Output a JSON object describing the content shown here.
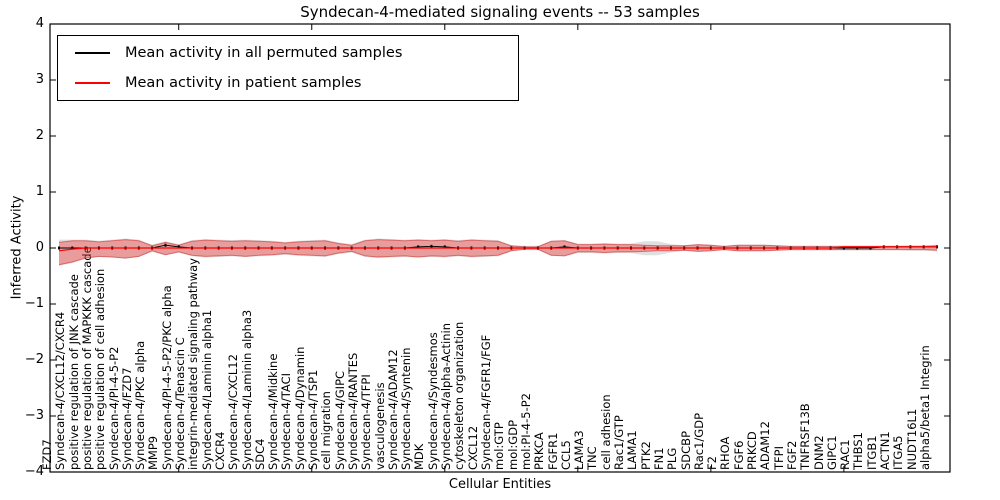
{
  "figure": {
    "background": "#ffffff"
  },
  "chart_data": {
    "type": "line",
    "title": "Syndecan-4-mediated signaling events -- 53 samples",
    "xlabel": "Cellular Entities",
    "ylabel": "Inferred Activity",
    "ylim": [
      -4,
      4
    ],
    "ytick_labels": [
      "4",
      "3",
      "2",
      "1",
      "0",
      "−1",
      "−2",
      "−3",
      "−4"
    ],
    "ytick_values": [
      4,
      3,
      2,
      1,
      0,
      -1,
      -2,
      -3,
      -4
    ],
    "grid": false,
    "legend": {
      "position": "upper left",
      "entries": [
        {
          "label": "Mean activity in all permuted samples",
          "color": "#000000"
        },
        {
          "label": "Mean activity in patient samples",
          "color": "#ff0000"
        }
      ]
    },
    "categories": [
      "FZD7",
      "Syndecan-4/CXCL12/CXCR4",
      "positive regulation of JNK cascade",
      "positive regulation of MAPKKK cascade",
      "positive regulation of cell adhesion",
      "Syndecan-4/PI-4-5-P2",
      "Syndecan-4/FZD7",
      "Syndecan-4/PKC alpha",
      "MMP9",
      "Syndecan-4/PI-4-5-P2/PKC alpha",
      "Syndecan-4/Tenascin C",
      "integrin-mediated signaling pathway",
      "Syndecan-4/Laminin alpha1",
      "CXCR4",
      "Syndecan-4/CXCL12",
      "Syndecan-4/Laminin alpha3",
      "SDC4",
      "Syndecan-4/Midkine",
      "Syndecan-4/TACI",
      "Syndecan-4/Dynamin",
      "Syndecan-4/TSP1",
      "cell migration",
      "Syndecan-4/GIPC",
      "Syndecan-4/RANTES",
      "Syndecan-4/TFPI",
      "vasculogenesis",
      "Syndecan-4/ADAM12",
      "Syndecan-4/Syntenin",
      "MDK",
      "Syndecan-4/Syndesmos",
      "Syndecan-4/alpha-Actinin",
      "cytoskeleton organization",
      "CXCL12",
      "Syndecan-4/FGFR1/FGF",
      "mol:GTP",
      "mol:GDP",
      "mol:PI-4-5-P2",
      "PRKCA",
      "FGFR1",
      "CCL5",
      "LAMA3",
      "TNC",
      "cell adhesion",
      "Rac1/GTP",
      "LAMA1",
      "PTK2",
      "FN1",
      "PLG",
      "SDCBP",
      "Rac1/GDP",
      "F2",
      "RHOA",
      "FGF6",
      "PRKCD",
      "ADAM12",
      "TFPI",
      "FGF2",
      "TNFRSF13B",
      "DNM2",
      "GIPC1",
      "RAC1",
      "THBS1",
      "ITGB1",
      "ACTN1",
      "ITGA5",
      "NUDT16L1",
      "alpha5/beta1 Integrin"
    ],
    "series": [
      {
        "name": "Mean activity in all permuted samples",
        "color": "#000000",
        "values": [
          0,
          0,
          0,
          0,
          0,
          0,
          0,
          0,
          0.05,
          0.02,
          0,
          0,
          0,
          0,
          0,
          0,
          0,
          0,
          0,
          0,
          0,
          0,
          0,
          0,
          0,
          0,
          0,
          0.02,
          0.03,
          0.02,
          0,
          0,
          0,
          0,
          0,
          0,
          0,
          0,
          0.02,
          0,
          0,
          0,
          0,
          0,
          0,
          0,
          0,
          0,
          0,
          0,
          0,
          0,
          0,
          0,
          0,
          0,
          0,
          0,
          0,
          0,
          0,
          0,
          0.02,
          0.02,
          0.02,
          0.02,
          0.02
        ]
      },
      {
        "name": "Mean activity in patient samples",
        "color": "#ff0000",
        "values": [
          -0.05,
          -0.02,
          0,
          0,
          0,
          0,
          0,
          0,
          0,
          0,
          0,
          0,
          0,
          0,
          0,
          0,
          0,
          0,
          0,
          0,
          0,
          0,
          0,
          0,
          0,
          0,
          0,
          0,
          0,
          0,
          0,
          0,
          0,
          0,
          0,
          0,
          0,
          0,
          0,
          0,
          0,
          0,
          0,
          0,
          0,
          0,
          0,
          0,
          0,
          0,
          0,
          0,
          0,
          0,
          0,
          0,
          0,
          0,
          0,
          0.02,
          0.02,
          0.02,
          0.02,
          0.02,
          0.02,
          0.02,
          0.02
        ]
      }
    ],
    "bands": [
      {
        "name": "permuted-samples-envelope",
        "fill": "rgba(130,130,130,0.25)",
        "upper": [
          0.15,
          0.15,
          0.15,
          0.13,
          0.15,
          0.17,
          0.15,
          0.06,
          0.12,
          0.07,
          0.14,
          0.16,
          0.15,
          0.14,
          0.15,
          0.14,
          0.13,
          0.11,
          0.13,
          0.14,
          0.15,
          0.1,
          0.07,
          0.15,
          0.17,
          0.16,
          0.15,
          0.16,
          0.15,
          0.16,
          0.14,
          0.16,
          0.15,
          0.14,
          0.05,
          0.04,
          0.04,
          0.13,
          0.14,
          0.08,
          0.08,
          0.09,
          0.08,
          0.08,
          0.12,
          0.12,
          0.07,
          0.05,
          0.07,
          0.06,
          0.04,
          0.06,
          0.06,
          0.06,
          0.05,
          0.04,
          0.04,
          0.04,
          0.04,
          0.04,
          0.04,
          0.04,
          0.04,
          0.04,
          0.05,
          0.05,
          0.06
        ],
        "lower": [
          -0.32,
          -0.27,
          -0.19,
          -0.16,
          -0.17,
          -0.19,
          -0.16,
          -0.07,
          -0.13,
          -0.08,
          -0.15,
          -0.17,
          -0.16,
          -0.15,
          -0.16,
          -0.15,
          -0.14,
          -0.12,
          -0.14,
          -0.15,
          -0.16,
          -0.11,
          -0.08,
          -0.16,
          -0.18,
          -0.17,
          -0.16,
          -0.17,
          -0.16,
          -0.17,
          -0.15,
          -0.17,
          -0.16,
          -0.15,
          -0.06,
          -0.04,
          -0.04,
          -0.14,
          -0.15,
          -0.09,
          -0.09,
          -0.1,
          -0.09,
          -0.09,
          -0.13,
          -0.13,
          -0.08,
          -0.05,
          -0.07,
          -0.06,
          -0.04,
          -0.06,
          -0.06,
          -0.06,
          -0.05,
          -0.04,
          -0.04,
          -0.04,
          -0.04,
          -0.04,
          -0.04,
          -0.04,
          -0.04,
          -0.04,
          -0.05,
          -0.05,
          -0.06
        ]
      },
      {
        "name": "patient-samples-envelope",
        "fill": "rgba(255,0,0,0.30)",
        "edge": "rgba(200,0,0,0.45)",
        "upper": [
          0.1,
          0.13,
          0.13,
          0.11,
          0.13,
          0.15,
          0.13,
          0.04,
          0.1,
          0.05,
          0.12,
          0.14,
          0.13,
          0.12,
          0.13,
          0.12,
          0.11,
          0.09,
          0.11,
          0.12,
          0.13,
          0.08,
          0.05,
          0.13,
          0.15,
          0.14,
          0.13,
          0.14,
          0.13,
          0.14,
          0.12,
          0.14,
          0.13,
          0.12,
          0.04,
          0.02,
          0.02,
          0.12,
          0.13,
          0.06,
          0.06,
          0.07,
          0.06,
          0.06,
          0.05,
          0.04,
          0.04,
          0.04,
          0.06,
          0.05,
          0.03,
          0.05,
          0.05,
          0.05,
          0.04,
          0.03,
          0.03,
          0.03,
          0.03,
          0.03,
          0.03,
          0.03,
          0.03,
          0.03,
          0.03,
          0.03,
          0.04
        ],
        "lower": [
          -0.3,
          -0.25,
          -0.18,
          -0.15,
          -0.16,
          -0.18,
          -0.15,
          -0.05,
          -0.12,
          -0.07,
          -0.13,
          -0.15,
          -0.14,
          -0.13,
          -0.15,
          -0.13,
          -0.12,
          -0.1,
          -0.12,
          -0.13,
          -0.14,
          -0.09,
          -0.06,
          -0.14,
          -0.16,
          -0.15,
          -0.14,
          -0.16,
          -0.14,
          -0.15,
          -0.13,
          -0.15,
          -0.14,
          -0.13,
          -0.05,
          -0.02,
          -0.02,
          -0.13,
          -0.14,
          -0.07,
          -0.07,
          -0.08,
          -0.07,
          -0.07,
          -0.06,
          -0.05,
          -0.05,
          -0.04,
          -0.06,
          -0.05,
          -0.03,
          -0.05,
          -0.05,
          -0.05,
          -0.04,
          -0.03,
          -0.03,
          -0.03,
          -0.03,
          -0.03,
          -0.03,
          -0.03,
          -0.03,
          -0.03,
          -0.03,
          -0.03,
          -0.04
        ]
      }
    ],
    "x_major_tick_indices": [
      9,
      19,
      29,
      39,
      49,
      59
    ]
  }
}
